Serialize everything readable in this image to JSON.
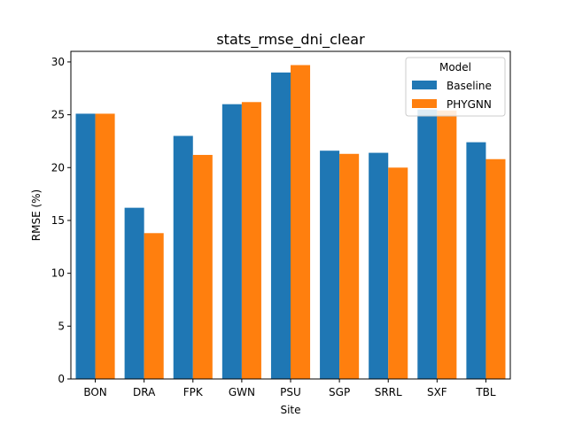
{
  "chart_data": {
    "type": "bar",
    "title": "stats_rmse_dni_clear",
    "xlabel": "Site",
    "ylabel": "RMSE (%)",
    "categories": [
      "BON",
      "DRA",
      "FPK",
      "GWN",
      "PSU",
      "SGP",
      "SRRL",
      "SXF",
      "TBL"
    ],
    "series": [
      {
        "name": "Baseline",
        "color": "#1f77b4",
        "values": [
          25.1,
          16.2,
          23.0,
          26.0,
          29.0,
          21.6,
          21.4,
          25.5,
          22.4
        ]
      },
      {
        "name": "PHYGNN",
        "color": "#ff7f0e",
        "values": [
          25.1,
          13.8,
          21.2,
          26.2,
          29.7,
          21.3,
          20.0,
          25.4,
          20.8
        ]
      }
    ],
    "ylim": [
      0,
      31
    ],
    "yticks": [
      0,
      5,
      10,
      15,
      20,
      25,
      30
    ],
    "legend": {
      "title": "Model",
      "placement": "top-right"
    },
    "grid": false
  }
}
